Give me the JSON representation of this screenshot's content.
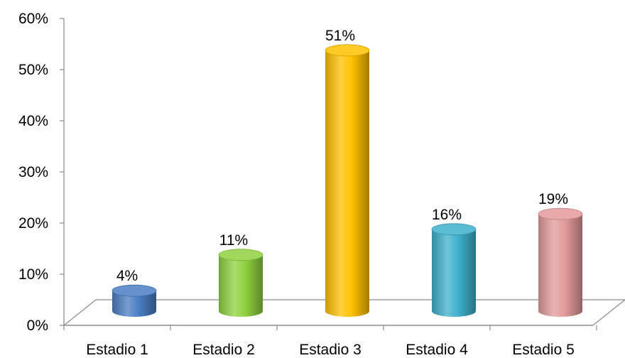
{
  "chart_data": {
    "type": "bar",
    "style": "3d-cylinder",
    "categories": [
      "Estadio 1",
      "Estadio 2",
      "Estadio 3",
      "Estadio 4",
      "Estadio 5"
    ],
    "values": [
      4,
      11,
      51,
      16,
      19
    ],
    "data_labels": [
      "4%",
      "11%",
      "51%",
      "16%",
      "19%"
    ],
    "y_ticks": [
      "0%",
      "10%",
      "20%",
      "30%",
      "40%",
      "50%",
      "60%"
    ],
    "ylim": [
      0,
      60
    ],
    "grid": false,
    "legend": "none",
    "colors": [
      "#4a7ec4",
      "#8fd13f",
      "#ffc000",
      "#3eb0cc",
      "#e39a9a"
    ],
    "title": "",
    "xlabel": "",
    "ylabel": ""
  }
}
